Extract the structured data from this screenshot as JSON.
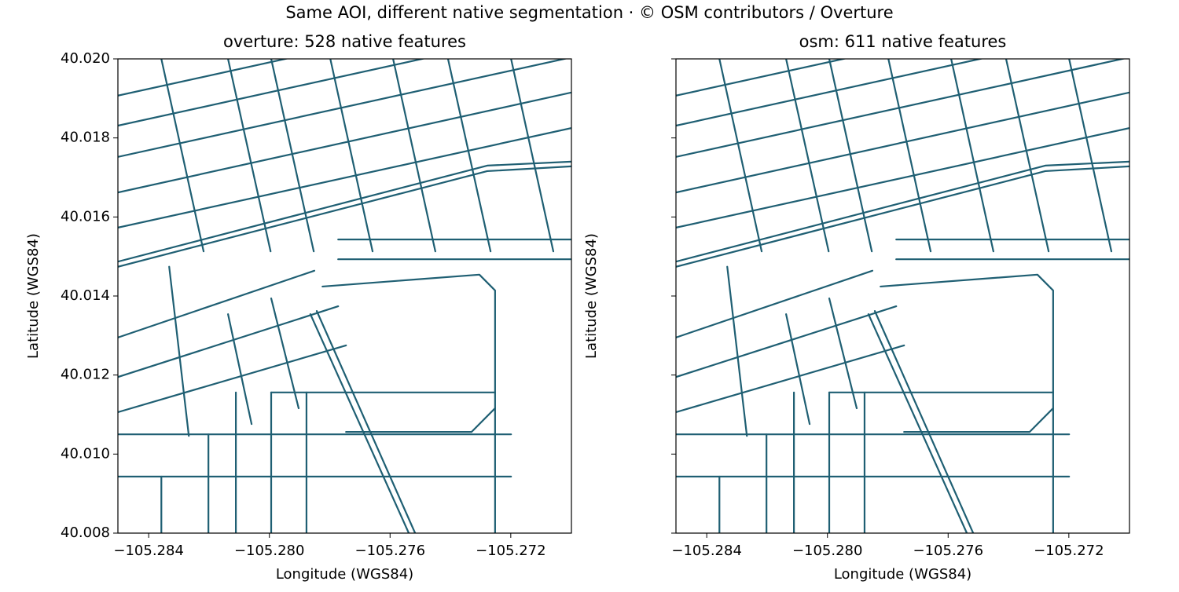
{
  "title": "Same AOI, different native segmentation · © OSM contributors / Overture",
  "chart_data": [
    {
      "type": "line",
      "title": "overture: 528 native features",
      "xlabel": "Longitude (WGS84)",
      "ylabel": "Latitude (WGS84)",
      "color": "#1f5f73",
      "xlim": [
        -105.28502,
        -105.26999
      ],
      "ylim": [
        40.008,
        40.02
      ],
      "xticks": [
        {
          "value": -105.284,
          "label": "−105.284"
        },
        {
          "value": -105.28,
          "label": "−105.280"
        },
        {
          "value": -105.276,
          "label": "−105.276"
        },
        {
          "value": -105.272,
          "label": "−105.272"
        }
      ],
      "yticks": [
        {
          "value": 40.008,
          "label": "40.008"
        },
        {
          "value": 40.01,
          "label": "40.010"
        },
        {
          "value": 40.012,
          "label": "40.012"
        },
        {
          "value": 40.014,
          "label": "40.014"
        },
        {
          "value": 40.016,
          "label": "40.016"
        },
        {
          "value": 40.018,
          "label": "40.018"
        },
        {
          "value": 40.02,
          "label": "40.020"
        }
      ],
      "series": [
        {
          "x": [
            -105.28502,
            -105.26999
          ],
          "values": [
            40.01907,
            40.02159
          ]
        },
        {
          "x": [
            -105.28502,
            -105.26999
          ],
          "values": [
            40.01831,
            40.02083
          ]
        },
        {
          "x": [
            -105.28502,
            -105.26999
          ],
          "values": [
            40.01752,
            40.02004
          ]
        },
        {
          "x": [
            -105.28502,
            -105.26999
          ],
          "values": [
            40.01662,
            40.01915
          ]
        },
        {
          "x": [
            -105.28502,
            -105.26999
          ],
          "values": [
            40.01573,
            40.01825
          ]
        },
        {
          "x": [
            -105.28502,
            -105.27278,
            -105.26999
          ],
          "values": [
            40.01474,
            40.01716,
            40.01728
          ]
        },
        {
          "x": [
            -105.28502,
            -105.27278,
            -105.26999
          ],
          "values": [
            40.01487,
            40.0173,
            40.0174
          ]
        },
        {
          "x": [
            -105.28358,
            -105.28218
          ],
          "values": [
            40.02,
            40.01513
          ]
        },
        {
          "x": [
            -105.28137,
            -105.27996
          ],
          "values": [
            40.02,
            40.01513
          ]
        },
        {
          "x": [
            -105.27994,
            -105.27853
          ],
          "values": [
            40.02,
            40.01513
          ]
        },
        {
          "x": [
            -105.27798,
            -105.27658
          ],
          "values": [
            40.02,
            40.01513
          ]
        },
        {
          "x": [
            -105.2759,
            -105.2745
          ],
          "values": [
            40.02,
            40.01513
          ]
        },
        {
          "x": [
            -105.27408,
            -105.27267
          ],
          "values": [
            40.02,
            40.01513
          ]
        },
        {
          "x": [
            -105.27199,
            -105.27059
          ],
          "values": [
            40.02,
            40.01513
          ]
        },
        {
          "x": [
            -105.28502,
            -105.27851
          ],
          "values": [
            40.01295,
            40.01464
          ]
        },
        {
          "x": [
            -105.28502,
            -105.27772
          ],
          "values": [
            40.01195,
            40.01374
          ]
        },
        {
          "x": [
            -105.28502,
            -105.27746
          ],
          "values": [
            40.01106,
            40.01275
          ]
        },
        {
          "x": [
            -105.28332,
            -105.28267
          ],
          "values": [
            40.01474,
            40.01046
          ]
        },
        {
          "x": [
            -105.28137,
            -105.28059
          ],
          "values": [
            40.01354,
            40.01076
          ]
        },
        {
          "x": [
            -105.27994,
            -105.27903
          ],
          "values": [
            40.01394,
            40.01116
          ]
        },
        {
          "x": [
            -105.28502,
            -105.27199
          ],
          "values": [
            40.0105,
            40.0105
          ]
        },
        {
          "x": [
            -105.28502,
            -105.27199
          ],
          "values": [
            40.00943,
            40.00943
          ]
        },
        {
          "x": [
            -105.27994,
            -105.27252
          ],
          "values": [
            40.01156,
            40.01156
          ]
        },
        {
          "x": [
            -105.28202,
            -105.28202
          ],
          "values": [
            40.0105,
            40.008
          ]
        },
        {
          "x": [
            -105.28111,
            -105.28111
          ],
          "values": [
            40.01156,
            40.008
          ]
        },
        {
          "x": [
            -105.27994,
            -105.27994
          ],
          "values": [
            40.01156,
            40.008
          ]
        },
        {
          "x": [
            -105.27877,
            -105.27877
          ],
          "values": [
            40.01156,
            40.008
          ]
        },
        {
          "x": [
            -105.28358,
            -105.28358
          ],
          "values": [
            40.00943,
            40.008
          ]
        },
        {
          "x": [
            -105.27864,
            -105.27538
          ],
          "values": [
            40.01354,
            40.008
          ]
        },
        {
          "x": [
            -105.27843,
            -105.27517
          ],
          "values": [
            40.01362,
            40.008
          ]
        },
        {
          "x": [
            -105.27824,
            -105.27304,
            -105.27252,
            -105.27252,
            -105.2733,
            -105.27746
          ],
          "values": [
            40.01424,
            40.01454,
            40.01414,
            40.01116,
            40.01056,
            40.01056
          ]
        },
        {
          "x": [
            -105.27772,
            -105.26999
          ],
          "values": [
            40.01543,
            40.01543
          ]
        },
        {
          "x": [
            -105.27772,
            -105.26999
          ],
          "values": [
            40.01493,
            40.01493
          ]
        },
        {
          "x": [
            -105.27252,
            -105.27252
          ],
          "values": [
            40.01116,
            40.008
          ]
        }
      ]
    },
    {
      "type": "line",
      "title": "osm: 611 native features",
      "xlabel": "Longitude (WGS84)",
      "ylabel": "Latitude (WGS84)",
      "color": "#1f5f73",
      "xlim": [
        -105.28502,
        -105.26999
      ],
      "ylim": [
        40.008,
        40.02
      ],
      "xticks": [
        {
          "value": -105.284,
          "label": "−105.284"
        },
        {
          "value": -105.28,
          "label": "−105.280"
        },
        {
          "value": -105.276,
          "label": "−105.276"
        },
        {
          "value": -105.272,
          "label": "−105.272"
        }
      ],
      "yticks": [
        40.008,
        40.01,
        40.012,
        40.014,
        40.016,
        40.018,
        40.02
      ],
      "series": [
        {
          "x": [
            -105.28502,
            -105.26999
          ],
          "values": [
            40.01907,
            40.02159
          ]
        },
        {
          "x": [
            -105.28502,
            -105.26999
          ],
          "values": [
            40.01831,
            40.02083
          ]
        },
        {
          "x": [
            -105.28502,
            -105.26999
          ],
          "values": [
            40.01752,
            40.02004
          ]
        },
        {
          "x": [
            -105.28502,
            -105.26999
          ],
          "values": [
            40.01662,
            40.01915
          ]
        },
        {
          "x": [
            -105.28502,
            -105.26999
          ],
          "values": [
            40.01573,
            40.01825
          ]
        },
        {
          "x": [
            -105.28502,
            -105.27278,
            -105.26999
          ],
          "values": [
            40.01474,
            40.01716,
            40.01728
          ]
        },
        {
          "x": [
            -105.28502,
            -105.27278,
            -105.26999
          ],
          "values": [
            40.01487,
            40.0173,
            40.0174
          ]
        },
        {
          "x": [
            -105.28358,
            -105.28218
          ],
          "values": [
            40.02,
            40.01513
          ]
        },
        {
          "x": [
            -105.28137,
            -105.27996
          ],
          "values": [
            40.02,
            40.01513
          ]
        },
        {
          "x": [
            -105.27994,
            -105.27853
          ],
          "values": [
            40.02,
            40.01513
          ]
        },
        {
          "x": [
            -105.27798,
            -105.27658
          ],
          "values": [
            40.02,
            40.01513
          ]
        },
        {
          "x": [
            -105.2759,
            -105.2745
          ],
          "values": [
            40.02,
            40.01513
          ]
        },
        {
          "x": [
            -105.27408,
            -105.27267
          ],
          "values": [
            40.02,
            40.01513
          ]
        },
        {
          "x": [
            -105.27199,
            -105.27059
          ],
          "values": [
            40.02,
            40.01513
          ]
        },
        {
          "x": [
            -105.28502,
            -105.27851
          ],
          "values": [
            40.01295,
            40.01464
          ]
        },
        {
          "x": [
            -105.28502,
            -105.27772
          ],
          "values": [
            40.01195,
            40.01374
          ]
        },
        {
          "x": [
            -105.28502,
            -105.27746
          ],
          "values": [
            40.01106,
            40.01275
          ]
        },
        {
          "x": [
            -105.28332,
            -105.28267
          ],
          "values": [
            40.01474,
            40.01046
          ]
        },
        {
          "x": [
            -105.28137,
            -105.28059
          ],
          "values": [
            40.01354,
            40.01076
          ]
        },
        {
          "x": [
            -105.27994,
            -105.27903
          ],
          "values": [
            40.01394,
            40.01116
          ]
        },
        {
          "x": [
            -105.28502,
            -105.27199
          ],
          "values": [
            40.0105,
            40.0105
          ]
        },
        {
          "x": [
            -105.28502,
            -105.27199
          ],
          "values": [
            40.00943,
            40.00943
          ]
        },
        {
          "x": [
            -105.27994,
            -105.27252
          ],
          "values": [
            40.01156,
            40.01156
          ]
        },
        {
          "x": [
            -105.28202,
            -105.28202
          ],
          "values": [
            40.0105,
            40.008
          ]
        },
        {
          "x": [
            -105.28111,
            -105.28111
          ],
          "values": [
            40.01156,
            40.008
          ]
        },
        {
          "x": [
            -105.27994,
            -105.27994
          ],
          "values": [
            40.01156,
            40.008
          ]
        },
        {
          "x": [
            -105.27877,
            -105.27877
          ],
          "values": [
            40.01156,
            40.008
          ]
        },
        {
          "x": [
            -105.28358,
            -105.28358
          ],
          "values": [
            40.00943,
            40.008
          ]
        },
        {
          "x": [
            -105.27864,
            -105.27538
          ],
          "values": [
            40.01354,
            40.008
          ]
        },
        {
          "x": [
            -105.27843,
            -105.27517
          ],
          "values": [
            40.01362,
            40.008
          ]
        },
        {
          "x": [
            -105.27824,
            -105.27304,
            -105.27252,
            -105.27252,
            -105.2733,
            -105.27746
          ],
          "values": [
            40.01424,
            40.01454,
            40.01414,
            40.01116,
            40.01056,
            40.01056
          ]
        },
        {
          "x": [
            -105.27772,
            -105.26999
          ],
          "values": [
            40.01543,
            40.01543
          ]
        },
        {
          "x": [
            -105.27772,
            -105.26999
          ],
          "values": [
            40.01493,
            40.01493
          ]
        },
        {
          "x": [
            -105.27252,
            -105.27252
          ],
          "values": [
            40.01116,
            40.008
          ]
        }
      ]
    }
  ]
}
